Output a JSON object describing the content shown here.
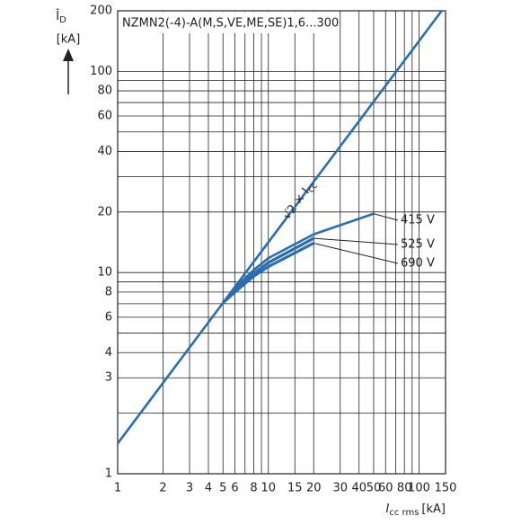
{
  "chart_data": {
    "type": "line",
    "title": "NZMN2(-4)-A(M,S,VE,ME,SE)1,6...300",
    "y_label": "Î",
    "y_label_sub": "D",
    "y_unit": "[kA]",
    "x_label": "I",
    "x_label_sub": "cc rms",
    "x_unit": "[kA]",
    "log_x": true,
    "log_y": true,
    "grid": true,
    "xlim": [
      1,
      150
    ],
    "ylim": [
      1,
      200
    ],
    "xticks": [
      1,
      2,
      3,
      4,
      5,
      6,
      8,
      10,
      15,
      20,
      30,
      40,
      50,
      60,
      80,
      100,
      150
    ],
    "xminor": [
      7,
      9,
      70,
      90
    ],
    "yticks": [
      1,
      3,
      4,
      6,
      8,
      10,
      20,
      40,
      60,
      80,
      100,
      200
    ],
    "yminor": [
      2,
      5,
      7,
      9,
      30,
      50,
      70,
      90
    ],
    "series": [
      {
        "name": "√2 × I",
        "name_sub": "cc",
        "color": "#2a6db0",
        "x": [
          1,
          141.4
        ],
        "values": [
          1.414,
          200
        ]
      },
      {
        "name": "415 V",
        "color": "#2a6db0",
        "x": [
          5,
          6,
          8,
          10,
          20,
          50
        ],
        "values": [
          7.07,
          8.4,
          10.3,
          11.8,
          15.5,
          19.6
        ]
      },
      {
        "name": "525 V",
        "color": "#2a6db0",
        "x": [
          5,
          6,
          8,
          10,
          20
        ],
        "values": [
          7.07,
          8.2,
          9.9,
          11.2,
          14.8
        ]
      },
      {
        "name": "690 V",
        "color": "#2a6db0",
        "x": [
          5,
          6,
          8,
          10,
          20
        ],
        "values": [
          7.07,
          8.0,
          9.6,
          10.7,
          14.0
        ]
      }
    ]
  }
}
